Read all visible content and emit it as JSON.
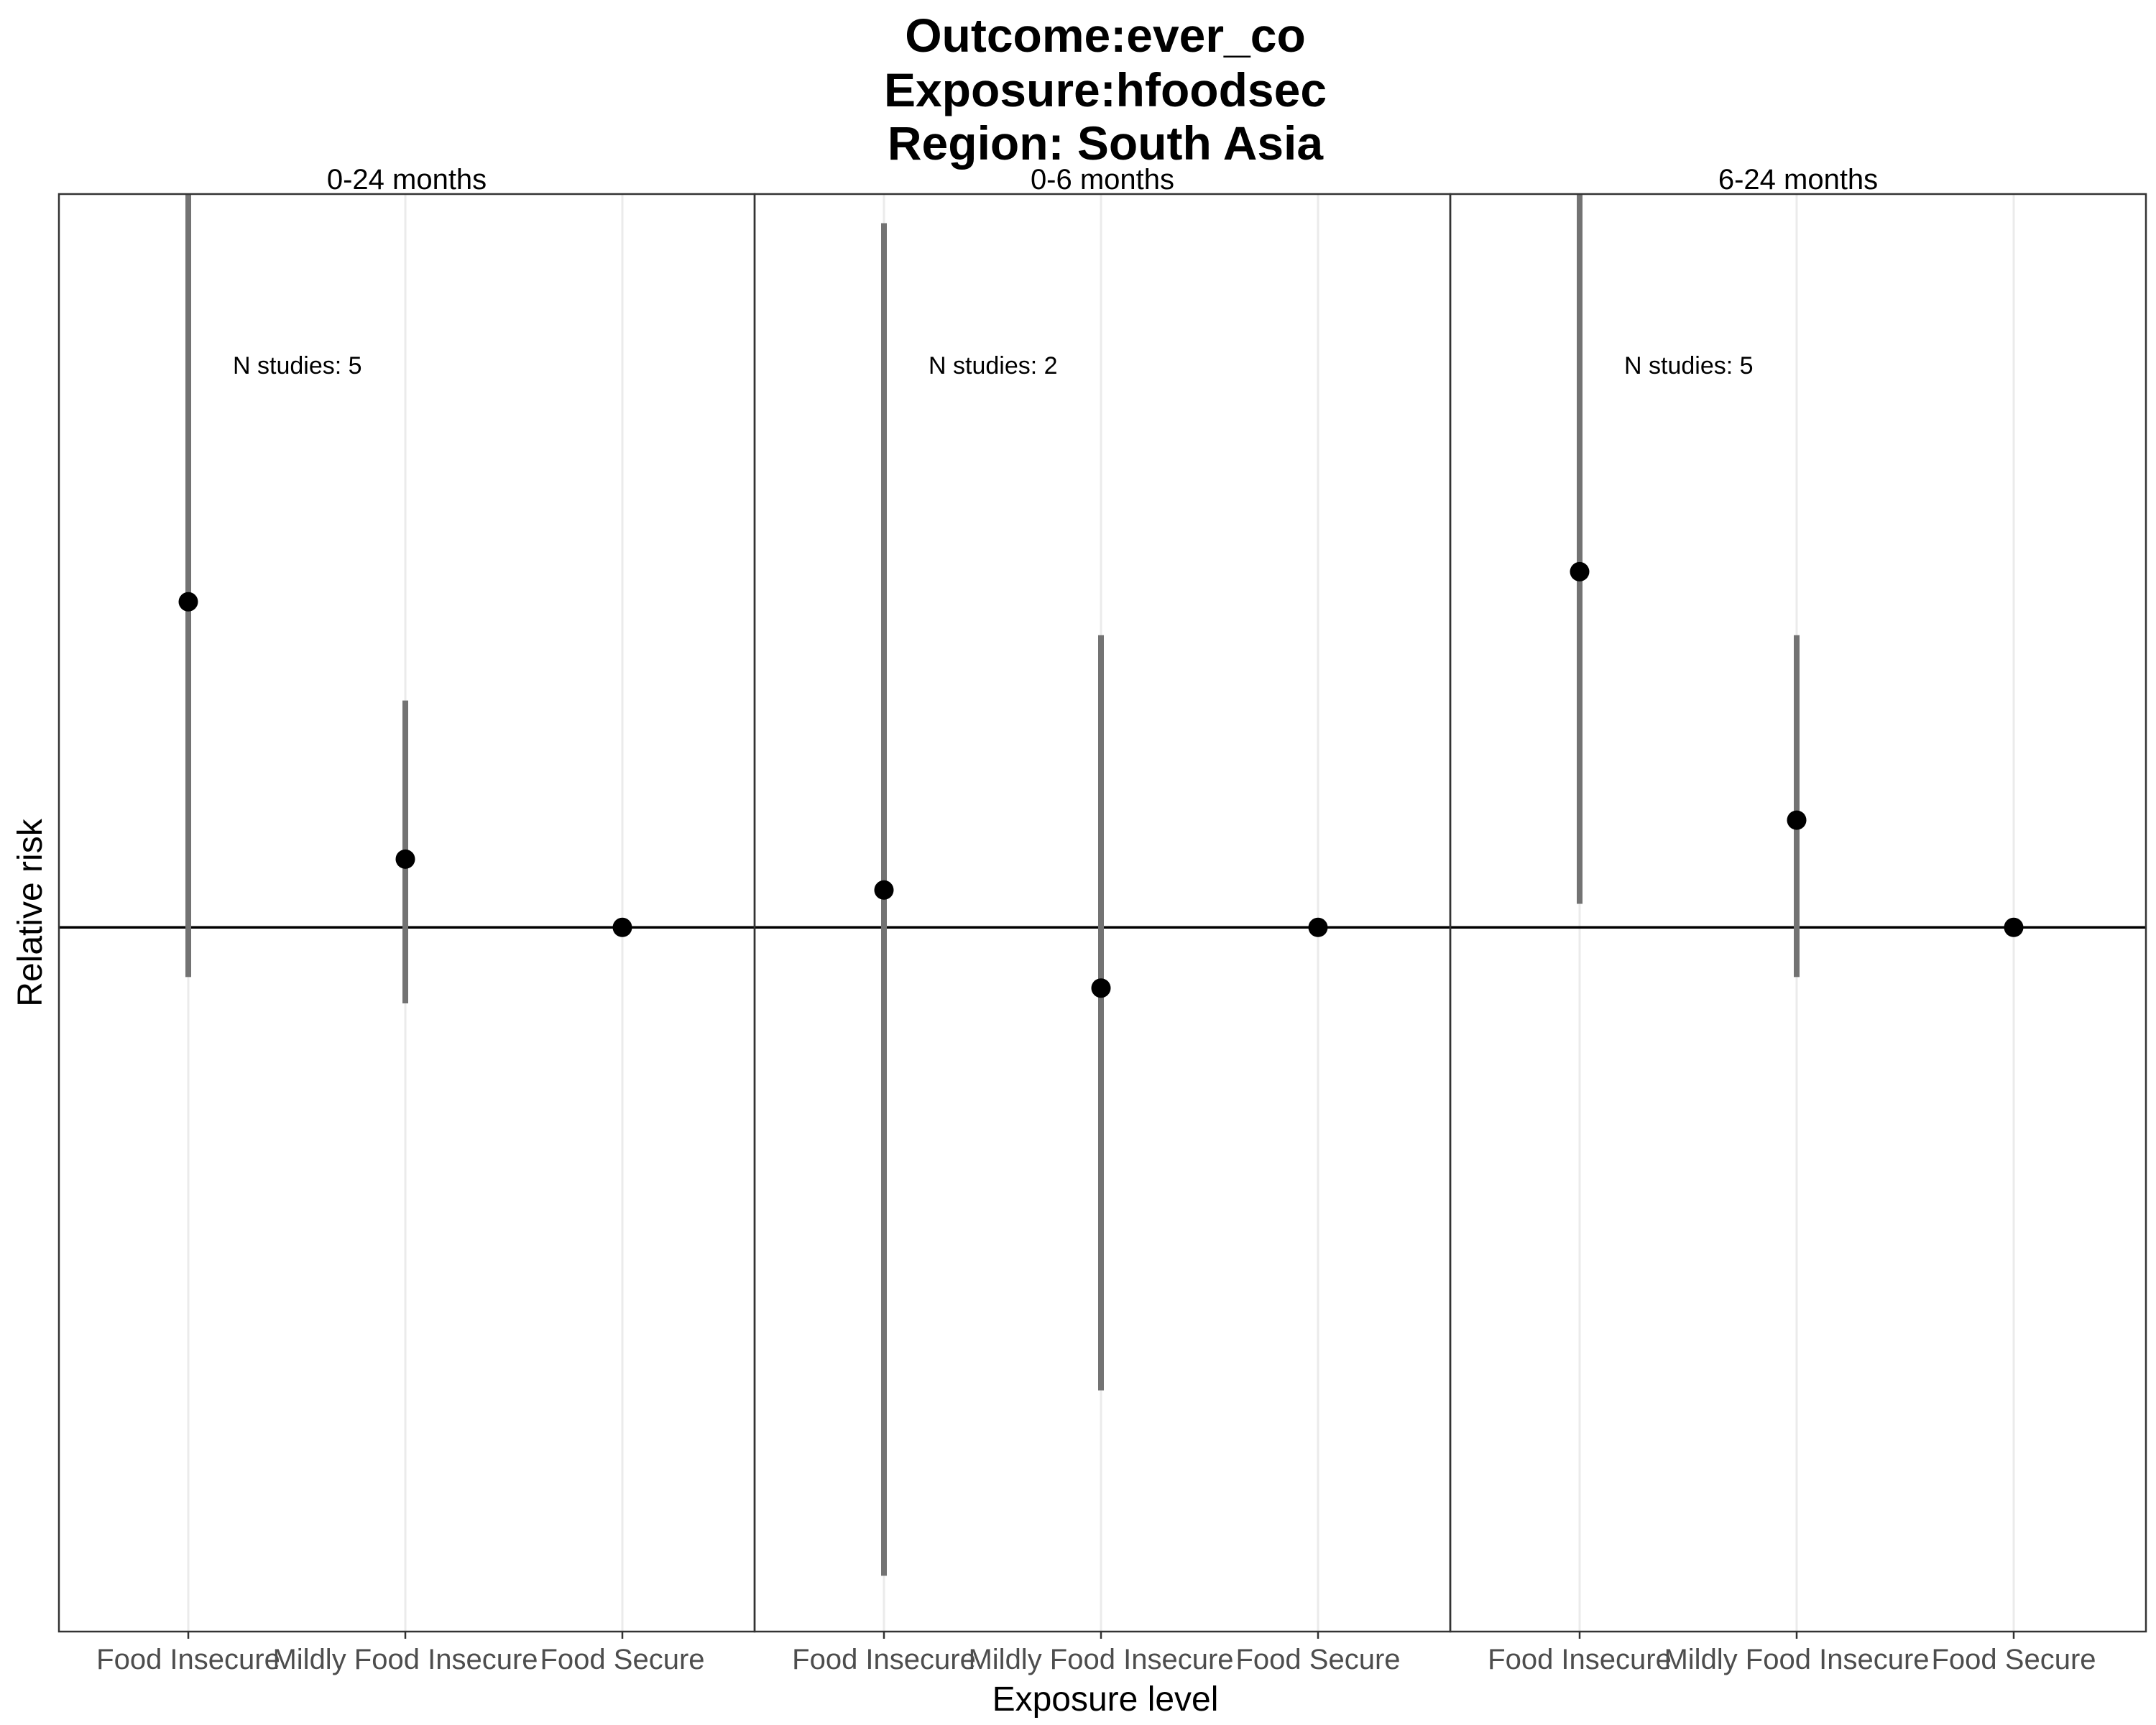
{
  "chart_data": {
    "type": "scatter",
    "subtype": "point-range (faceted)",
    "title": [
      "Outcome:ever_co",
      "Exposure:hfoodsec",
      "Region: South Asia"
    ],
    "xlabel": "Exposure level",
    "ylabel": "Relative risk",
    "categories": [
      "Food Insecure",
      "Mildly Food Insecure",
      "Food Secure"
    ],
    "reference_line": 1.0,
    "ylim": [
      0.1,
      11.0
    ],
    "grid": "vertical major gridlines",
    "facets": [
      {
        "label": "0-24 months",
        "note": "N studies: 5",
        "points": [
          {
            "category": "Food Insecure",
            "estimate": 2.9,
            "lower": 0.85,
            "upper": 13.0
          },
          {
            "category": "Mildly Food Insecure",
            "estimate": 1.25,
            "lower": 0.78,
            "upper": 2.1
          },
          {
            "category": "Food Secure",
            "estimate": 1.0,
            "lower": 1.0,
            "upper": 1.0
          }
        ]
      },
      {
        "label": "0-6 months",
        "note": "N studies: 2",
        "points": [
          {
            "category": "Food Insecure",
            "estimate": 1.13,
            "lower": 0.12,
            "upper": 10.0
          },
          {
            "category": "Mildly Food Insecure",
            "estimate": 0.82,
            "lower": 0.22,
            "upper": 2.6
          },
          {
            "category": "Food Secure",
            "estimate": 1.0,
            "lower": 1.0,
            "upper": 1.0
          }
        ]
      },
      {
        "label": "6-24 months",
        "note": "N studies: 5",
        "points": [
          {
            "category": "Food Insecure",
            "estimate": 3.2,
            "lower": 1.08,
            "upper": 12.8
          },
          {
            "category": "Mildly Food Insecure",
            "estimate": 1.42,
            "lower": 0.85,
            "upper": 2.6
          },
          {
            "category": "Food Secure",
            "estimate": 1.0,
            "lower": 1.0,
            "upper": 1.0
          }
        ]
      }
    ]
  }
}
